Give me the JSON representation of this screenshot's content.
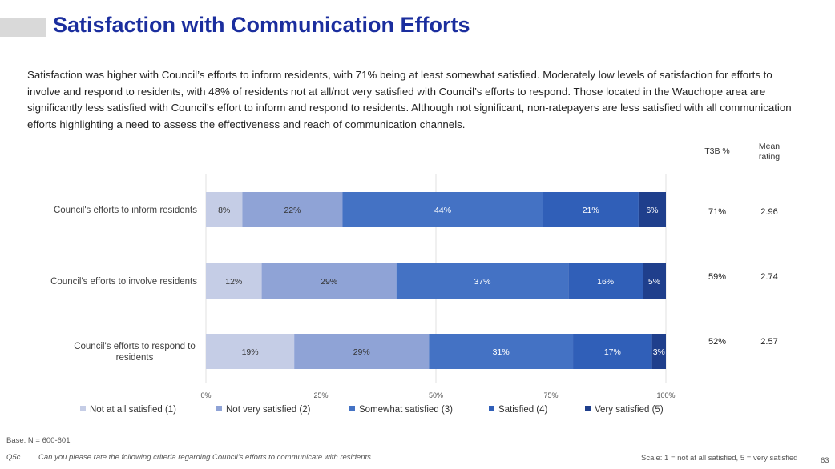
{
  "header": {
    "title": "Satisfaction with Communication Efforts"
  },
  "summary": "Satisfaction was higher with Council’s efforts to inform residents, with 71% being at least somewhat satisfied. Moderately low levels of satisfaction for efforts to involve and respond to residents, with 48% of residents not at all/not very satisfied with Council’s efforts to respond. Those located in the Wauchope area are significantly less satisfied with Council’s effort to inform and respond to residents. Although not significant, non-ratepayers are less satisfied with all communication efforts highlighting a need to assess the effectiveness and reach of communication channels.",
  "chart_data": {
    "type": "bar",
    "orientation": "horizontal",
    "stacked": true,
    "categories": [
      "Council's efforts to inform residents",
      "Council's efforts to involve residents",
      "Council's efforts to respond to residents"
    ],
    "series": [
      {
        "name": "Not at all satisfied (1)",
        "values": [
          8,
          12,
          19
        ],
        "labels": [
          "8%",
          "12%",
          "19%"
        ],
        "color": "#c5cde6",
        "label_color": "#333333"
      },
      {
        "name": "Not very satisfied (2)",
        "values": [
          22,
          29,
          29
        ],
        "labels": [
          "22%",
          "29%",
          "29%"
        ],
        "color": "#8fa3d6",
        "label_color": "#333333"
      },
      {
        "name": "Somewhat satisfied (3)",
        "values": [
          44,
          37,
          31
        ],
        "labels": [
          "44%",
          "37%",
          "31%"
        ],
        "color": "#4472c4",
        "label_color": "#ffffff"
      },
      {
        "name": "Satisfied (4)",
        "values": [
          21,
          16,
          17
        ],
        "labels": [
          "21%",
          "16%",
          "17%"
        ],
        "color": "#305fb8",
        "label_color": "#ffffff"
      },
      {
        "name": "Very satisfied (5)",
        "values": [
          6,
          5,
          3
        ],
        "labels": [
          "6%",
          "5%",
          "3%"
        ],
        "color": "#1f3f8c",
        "label_color": "#ffffff"
      }
    ],
    "xlim": [
      0,
      100
    ],
    "x_ticks": [
      "0%",
      "25%",
      "50%",
      "75%",
      "100%"
    ],
    "gridlines": true,
    "legend_position": "bottom"
  },
  "table": {
    "headers": [
      "T3B %",
      "Mean rating"
    ],
    "rows": [
      {
        "t3b": "71%",
        "mean": "2.96"
      },
      {
        "t3b": "59%",
        "mean": "2.74"
      },
      {
        "t3b": "52%",
        "mean": "2.57"
      }
    ]
  },
  "footer": {
    "base": "Base: N = 600-601",
    "question_code": "Q5c.",
    "question_text": "Can you please rate the following criteria regarding Council’s efforts to communicate with residents.",
    "scale": "Scale: 1 = not at all satisfied, 5 = very satisfied",
    "page_number": "63"
  }
}
